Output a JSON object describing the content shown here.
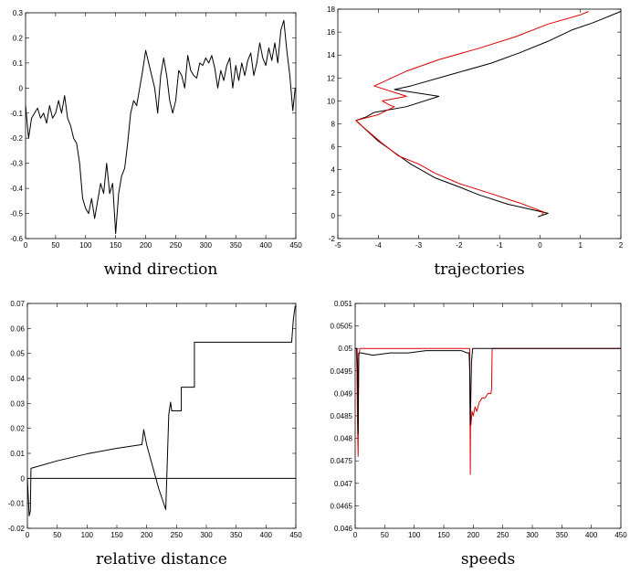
{
  "chart_data": [
    {
      "type": "line",
      "caption": "wind direction",
      "xlim": [
        0,
        450
      ],
      "ylim": [
        -0.6,
        0.3
      ],
      "xticks": [
        0,
        50,
        100,
        150,
        200,
        250,
        300,
        350,
        400,
        450
      ],
      "yticks": [
        -0.6,
        -0.5,
        -0.4,
        -0.3,
        -0.2,
        -0.1,
        0,
        0.1,
        0.2,
        0.3
      ],
      "grid": false,
      "series": [
        {
          "color": "#000000",
          "x": [
            0,
            5,
            10,
            15,
            20,
            25,
            30,
            35,
            40,
            45,
            50,
            55,
            60,
            65,
            70,
            75,
            80,
            85,
            90,
            95,
            100,
            105,
            110,
            115,
            120,
            125,
            130,
            135,
            140,
            145,
            150,
            155,
            160,
            165,
            170,
            175,
            180,
            185,
            190,
            195,
            200,
            205,
            210,
            215,
            220,
            225,
            230,
            235,
            240,
            245,
            250,
            255,
            260,
            265,
            270,
            275,
            280,
            285,
            290,
            295,
            300,
            305,
            310,
            315,
            320,
            325,
            330,
            335,
            340,
            345,
            350,
            355,
            360,
            365,
            370,
            375,
            380,
            385,
            390,
            395,
            400,
            405,
            410,
            415,
            420,
            425,
            430,
            435,
            440,
            445,
            449
          ],
          "y": [
            -0.07,
            -0.2,
            -0.12,
            -0.1,
            -0.08,
            -0.12,
            -0.1,
            -0.14,
            -0.07,
            -0.12,
            -0.1,
            -0.05,
            -0.1,
            -0.03,
            -0.12,
            -0.15,
            -0.2,
            -0.22,
            -0.3,
            -0.44,
            -0.48,
            -0.5,
            -0.44,
            -0.52,
            -0.45,
            -0.38,
            -0.42,
            -0.3,
            -0.42,
            -0.38,
            -0.58,
            -0.42,
            -0.35,
            -0.32,
            -0.22,
            -0.1,
            -0.05,
            -0.07,
            0.0,
            0.07,
            0.15,
            0.1,
            0.05,
            0.0,
            -0.1,
            0.05,
            0.12,
            0.05,
            -0.05,
            -0.1,
            -0.05,
            0.07,
            0.05,
            0.0,
            0.13,
            0.07,
            0.05,
            0.04,
            0.1,
            0.09,
            0.12,
            0.1,
            0.13,
            0.08,
            0.0,
            0.07,
            0.03,
            0.09,
            0.12,
            0.0,
            0.09,
            0.03,
            0.1,
            0.05,
            0.11,
            0.14,
            0.05,
            0.1,
            0.18,
            0.12,
            0.09,
            0.16,
            0.11,
            0.18,
            0.1,
            0.23,
            0.27,
            0.15,
            0.05,
            -0.09,
            0.0
          ]
        }
      ]
    },
    {
      "type": "line",
      "caption": "trajectories",
      "xlim": [
        -5,
        2
      ],
      "ylim": [
        -2,
        18
      ],
      "xticks": [
        -5,
        -4,
        -3,
        -2,
        -1,
        0,
        1,
        2
      ],
      "yticks": [
        -2,
        0,
        2,
        4,
        6,
        8,
        10,
        12,
        14,
        16,
        18
      ],
      "grid": false,
      "series": [
        {
          "color": "#000000",
          "x": [
            2.0,
            1.3,
            0.8,
            0.2,
            -0.5,
            -1.2,
            -2.2,
            -3.2,
            -3.6,
            -2.5,
            -3.3,
            -4.1,
            -4.3,
            -4.55,
            -4.4,
            -4.0,
            -3.6,
            -3.2,
            -2.8,
            -2.6,
            -2.0,
            -1.5,
            -0.8,
            0.2,
            -0.05
          ],
          "y": [
            17.8,
            16.8,
            16.2,
            15.2,
            14.2,
            13.3,
            12.3,
            11.3,
            11.0,
            10.4,
            9.5,
            9.0,
            8.6,
            8.3,
            7.8,
            6.5,
            5.5,
            4.5,
            3.7,
            3.3,
            2.5,
            1.8,
            1.0,
            0.2,
            -0.1
          ]
        },
        {
          "color": "#e00000",
          "x": [
            1.2,
            1.0,
            0.2,
            -0.6,
            -1.5,
            -2.5,
            -3.3,
            -4.1,
            -3.3,
            -3.9,
            -3.7,
            -3.6,
            -4.0,
            -4.55,
            -4.5,
            -4.3,
            -3.9,
            -3.5,
            -3.0,
            -2.6,
            -2.0,
            -1.2,
            -0.5,
            0.1,
            0.05
          ],
          "y": [
            17.8,
            17.5,
            16.7,
            15.6,
            14.6,
            13.6,
            12.6,
            11.3,
            10.4,
            10.0,
            9.6,
            9.5,
            8.8,
            8.3,
            8.1,
            7.5,
            6.3,
            5.2,
            4.5,
            3.7,
            2.8,
            1.9,
            1.1,
            0.3,
            0.1
          ]
        }
      ]
    },
    {
      "type": "line",
      "caption": "relative distance",
      "xlim": [
        0,
        450
      ],
      "ylim": [
        -0.02,
        0.07
      ],
      "xticks": [
        0,
        50,
        100,
        150,
        200,
        250,
        300,
        350,
        400,
        450
      ],
      "yticks": [
        -0.02,
        -0.01,
        0,
        0.01,
        0.02,
        0.03,
        0.04,
        0.05,
        0.06,
        0.07
      ],
      "grid": false,
      "series": [
        {
          "color": "#000000",
          "x": [
            0,
            3,
            5,
            6,
            50,
            100,
            150,
            192,
            195,
            200,
            220,
            232,
            237,
            240,
            242,
            248,
            258,
            258,
            280,
            280,
            440,
            443,
            446,
            449
          ],
          "y": [
            0.0,
            -0.015,
            -0.013,
            0.004,
            0.007,
            0.0098,
            0.012,
            0.0135,
            0.0195,
            0.0134,
            -0.004,
            -0.0125,
            0.0255,
            0.0305,
            0.027,
            0.027,
            0.027,
            0.0365,
            0.0365,
            0.0545,
            0.0545,
            0.0545,
            0.064,
            0.069
          ]
        },
        {
          "color": "#000000",
          "x": [
            0,
            450
          ],
          "y": [
            0,
            0
          ]
        }
      ]
    },
    {
      "type": "line",
      "caption": "speeds",
      "xlim": [
        0,
        450
      ],
      "ylim": [
        0.046,
        0.051
      ],
      "xticks": [
        0,
        50,
        100,
        150,
        200,
        250,
        300,
        350,
        400,
        450
      ],
      "yticks": [
        0.046,
        0.0465,
        0.047,
        0.0475,
        0.048,
        0.0485,
        0.049,
        0.0495,
        0.05,
        0.0505,
        0.051
      ],
      "grid": false,
      "series": [
        {
          "color": "#e00000",
          "x": [
            0,
            2,
            3,
            4,
            5,
            6,
            8,
            100,
            194,
            195,
            195.5,
            196,
            198,
            200,
            203,
            206,
            210,
            215,
            220,
            225,
            230,
            231,
            232,
            450
          ],
          "y": [
            0.05,
            0.05,
            0.0495,
            0.0483,
            0.0476,
            0.0498,
            0.05,
            0.05,
            0.05,
            0.0472,
            0.0485,
            0.0483,
            0.0486,
            0.0485,
            0.0487,
            0.0486,
            0.0488,
            0.0489,
            0.0489,
            0.049,
            0.049,
            0.0491,
            0.05,
            0.05
          ]
        },
        {
          "color": "#000000",
          "x": [
            0,
            3,
            4,
            5,
            6,
            10,
            30,
            60,
            90,
            120,
            150,
            180,
            190,
            193,
            194,
            195,
            197,
            199,
            200,
            450
          ],
          "y": [
            0.05,
            0.05,
            0.0496,
            0.0481,
            0.0499,
            0.0499,
            0.04985,
            0.0499,
            0.0499,
            0.04995,
            0.04995,
            0.04995,
            0.0499,
            0.0499,
            0.0495,
            0.0483,
            0.0497,
            0.05,
            0.05,
            0.05
          ]
        }
      ]
    }
  ]
}
